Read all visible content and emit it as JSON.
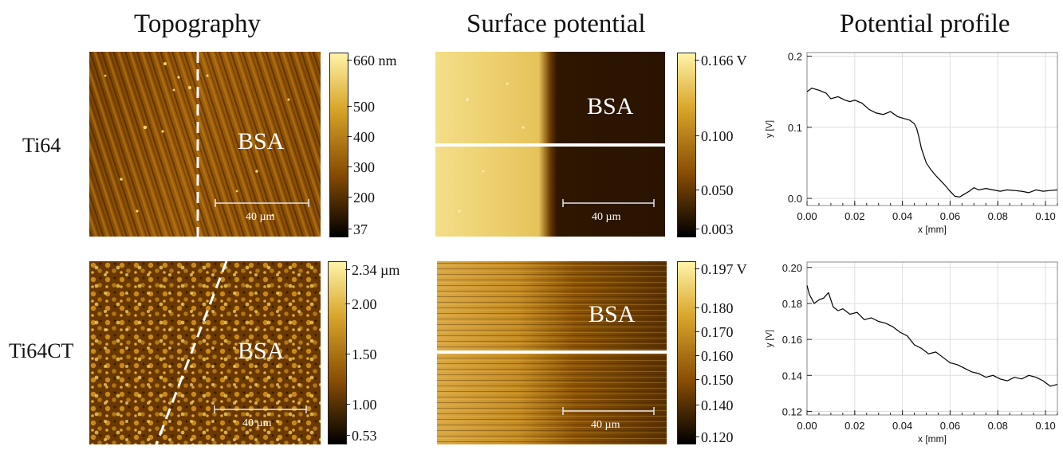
{
  "columns": {
    "topography": "Topography",
    "surface_potential": "Surface potential",
    "potential_profile": "Potential profile"
  },
  "rows": {
    "ti64": "Ti64",
    "ti64ct": "Ti64CT"
  },
  "labels": {
    "bsa": "BSA",
    "scale_bar": "40 µm"
  },
  "colorbars": {
    "ti64_topography": [
      "660 nm",
      "500",
      "400",
      "300",
      "200",
      "37"
    ],
    "ti64ct_topography": [
      "2.34 µm",
      "2.00",
      "1.50",
      "1.00",
      "0.53"
    ],
    "ti64_potential": [
      "0.166 V",
      "0.100",
      "0.050",
      "0.003"
    ],
    "ti64ct_potential": [
      "0.197 V",
      "0.180",
      "0.170",
      "0.160",
      "0.150",
      "0.140",
      "0.120"
    ]
  },
  "colors": {
    "colormap_low": "#000000",
    "colormap_mid": "#a86a00",
    "colormap_high": "#fff4a8",
    "line": "#000000",
    "grid": "#dddddd"
  },
  "chart_data": [
    {
      "type": "line",
      "xlabel": "x [mm]",
      "ylabel": "y [V]",
      "xlim": [
        0,
        0.105
      ],
      "ylim": [
        -0.01,
        0.205
      ],
      "xticks": [
        0.0,
        0.02,
        0.04,
        0.06,
        0.08,
        0.1
      ],
      "xtick_labels": [
        "0.00",
        "0.02",
        "0.04",
        "0.06",
        "0.08",
        "0.10"
      ],
      "yticks": [
        0.0,
        0.1,
        0.2
      ],
      "ytick_labels": [
        "0.0",
        "0.1",
        "0.2"
      ],
      "grid": true,
      "series": [
        {
          "x": [
            0.0,
            0.002,
            0.005,
            0.008,
            0.01,
            0.013,
            0.016,
            0.018,
            0.02,
            0.023,
            0.026,
            0.029,
            0.032,
            0.035,
            0.038,
            0.041,
            0.043,
            0.045,
            0.046,
            0.047,
            0.048,
            0.049,
            0.05,
            0.052,
            0.054,
            0.056,
            0.058,
            0.06,
            0.062,
            0.064,
            0.066,
            0.068,
            0.07,
            0.072,
            0.075,
            0.078,
            0.081,
            0.084,
            0.087,
            0.09,
            0.093,
            0.096,
            0.099,
            0.102,
            0.105
          ],
          "y": [
            0.15,
            0.155,
            0.152,
            0.148,
            0.14,
            0.143,
            0.138,
            0.136,
            0.138,
            0.134,
            0.125,
            0.12,
            0.118,
            0.122,
            0.115,
            0.112,
            0.11,
            0.105,
            0.098,
            0.085,
            0.07,
            0.06,
            0.05,
            0.04,
            0.032,
            0.025,
            0.018,
            0.01,
            0.003,
            0.002,
            0.006,
            0.01,
            0.015,
            0.012,
            0.014,
            0.012,
            0.01,
            0.012,
            0.011,
            0.01,
            0.008,
            0.012,
            0.01,
            0.011,
            0.012
          ]
        }
      ]
    },
    {
      "type": "line",
      "xlabel": "x [mm]",
      "ylabel": "y [V]",
      "xlim": [
        0,
        0.105
      ],
      "ylim": [
        0.118,
        0.203
      ],
      "xticks": [
        0.0,
        0.02,
        0.04,
        0.06,
        0.08,
        0.1
      ],
      "xtick_labels": [
        "0.00",
        "0.02",
        "0.04",
        "0.06",
        "0.08",
        "0.10"
      ],
      "yticks": [
        0.12,
        0.14,
        0.16,
        0.18,
        0.2
      ],
      "ytick_labels": [
        "0.12",
        "0.14",
        "0.16",
        "0.18",
        "0.20"
      ],
      "grid": true,
      "series": [
        {
          "x": [
            0.0,
            0.001,
            0.003,
            0.005,
            0.007,
            0.009,
            0.011,
            0.013,
            0.015,
            0.018,
            0.021,
            0.024,
            0.027,
            0.03,
            0.033,
            0.036,
            0.039,
            0.042,
            0.045,
            0.048,
            0.051,
            0.054,
            0.057,
            0.06,
            0.063,
            0.066,
            0.069,
            0.072,
            0.075,
            0.078,
            0.081,
            0.084,
            0.087,
            0.09,
            0.093,
            0.096,
            0.099,
            0.102,
            0.105
          ],
          "y": [
            0.19,
            0.185,
            0.18,
            0.182,
            0.183,
            0.186,
            0.178,
            0.176,
            0.177,
            0.174,
            0.175,
            0.171,
            0.172,
            0.17,
            0.169,
            0.167,
            0.164,
            0.162,
            0.157,
            0.155,
            0.152,
            0.153,
            0.15,
            0.147,
            0.146,
            0.144,
            0.142,
            0.141,
            0.139,
            0.14,
            0.138,
            0.137,
            0.139,
            0.138,
            0.14,
            0.139,
            0.137,
            0.134,
            0.135
          ]
        }
      ]
    }
  ]
}
